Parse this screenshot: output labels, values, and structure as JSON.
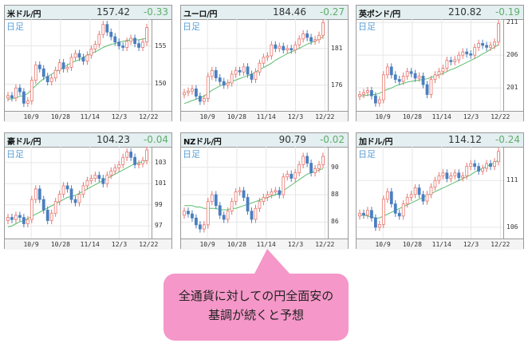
{
  "chart_data": [
    {
      "type": "candlestick",
      "title": "米ドル/円",
      "price": "157.42",
      "change": "-0.33",
      "period": "日足",
      "x_ticks": [
        "10/9",
        "10/28",
        "11/14",
        "12/3",
        "12/22"
      ],
      "y_ticks": [
        "155",
        "150"
      ],
      "ylim": [
        146.5,
        158.5
      ],
      "close_series": [
        148.5,
        148.2,
        149.5,
        149.0,
        147.5,
        147.8,
        150.5,
        152.5,
        152.0,
        151.0,
        150.3,
        150.8,
        151.8,
        152.8,
        152.0,
        152.2,
        153.5,
        154.0,
        153.5,
        153.0,
        153.8,
        154.6,
        155.2,
        156.5,
        157.8,
        156.8,
        156.2,
        155.5,
        155.0,
        154.8,
        155.6,
        156.0,
        155.3,
        154.8,
        155.5,
        157.4
      ],
      "ma_series": [
        148.0,
        148.1,
        148.2,
        148.4,
        148.5,
        148.8,
        149.3,
        149.8,
        150.3,
        150.7,
        151.0,
        151.3,
        151.6,
        151.9,
        152.2,
        152.5,
        152.8,
        153.0,
        153.2,
        153.5,
        153.8,
        154.0,
        154.2,
        154.5,
        154.8,
        155.0,
        155.2,
        155.3,
        155.5,
        155.6,
        155.7,
        155.8,
        155.8,
        155.8,
        155.9,
        156.0
      ]
    },
    {
      "type": "candlestick",
      "title": "ユーロ/円",
      "price": "184.46",
      "change": "-0.27",
      "period": "日足",
      "x_ticks": [
        "10/9",
        "10/28",
        "11/14",
        "12/3",
        "12/22"
      ],
      "y_ticks": [
        "181",
        "176"
      ],
      "ylim": [
        172.5,
        185
      ],
      "close_series": [
        175.0,
        175.2,
        175.5,
        174.5,
        173.8,
        174.2,
        177.2,
        178.0,
        177.0,
        176.5,
        176.0,
        176.3,
        177.5,
        178.0,
        177.8,
        178.5,
        177.5,
        176.8,
        177.8,
        179.0,
        179.8,
        180.0,
        181.5,
        181.0,
        181.3,
        180.8,
        181.0,
        180.8,
        181.5,
        182.3,
        183.0,
        182.5,
        182.0,
        182.2,
        182.8,
        184.5
      ],
      "ma_series": [
        173.5,
        173.7,
        173.9,
        174.1,
        174.3,
        174.5,
        174.9,
        175.3,
        175.6,
        175.9,
        176.1,
        176.3,
        176.5,
        176.7,
        176.9,
        177.1,
        177.3,
        177.5,
        177.8,
        178.1,
        178.4,
        178.7,
        179.0,
        179.4,
        179.7,
        180.0,
        180.3,
        180.5,
        180.8,
        181.0,
        181.3,
        181.6,
        181.8,
        182.0,
        182.3,
        182.6
      ]
    },
    {
      "type": "candlestick",
      "title": "英ポンド/円",
      "price": "210.82",
      "change": "-0.19",
      "period": "日足",
      "x_ticks": [
        "10/9",
        "10/28",
        "11/14",
        "12/3",
        "12/22"
      ],
      "y_ticks": [
        "211",
        "206",
        "201"
      ],
      "ylim": [
        197.5,
        211.5
      ],
      "close_series": [
        200.0,
        200.3,
        200.6,
        199.8,
        198.7,
        199.2,
        203.0,
        204.2,
        203.0,
        202.3,
        202.0,
        202.8,
        203.5,
        203.2,
        202.5,
        202.8,
        201.5,
        200.0,
        202.3,
        203.0,
        203.5,
        204.0,
        205.2,
        205.0,
        205.3,
        206.0,
        206.5,
        206.2,
        206.0,
        207.2,
        207.8,
        207.5,
        207.2,
        207.5,
        208.0,
        210.8
      ],
      "ma_series": [
        199.8,
        199.8,
        199.9,
        200.0,
        200.0,
        200.2,
        200.5,
        200.8,
        201.0,
        201.3,
        201.5,
        201.7,
        201.9,
        202.0,
        202.1,
        202.2,
        202.3,
        202.4,
        202.6,
        202.8,
        203.0,
        203.2,
        203.5,
        203.8,
        204.0,
        204.3,
        204.6,
        204.9,
        205.2,
        205.5,
        205.8,
        206.2,
        206.5,
        206.9,
        207.2,
        207.6
      ]
    },
    {
      "type": "candlestick",
      "title": "豪ドル/円",
      "price": "104.23",
      "change": "-0.04",
      "period": "日足",
      "x_ticks": [
        "10/9",
        "10/28",
        "11/14",
        "12/3",
        "12/22"
      ],
      "y_ticks": [
        "103",
        "101",
        "99",
        "97"
      ],
      "ylim": [
        95.8,
        104.5
      ],
      "close_series": [
        97.8,
        97.6,
        98.0,
        97.8,
        97.2,
        97.6,
        99.5,
        100.5,
        99.5,
        98.5,
        97.5,
        98.2,
        99.3,
        100.0,
        100.8,
        100.5,
        99.5,
        99.2,
        100.0,
        100.8,
        101.3,
        101.5,
        101.8,
        101.5,
        101.0,
        101.8,
        102.2,
        102.5,
        102.8,
        103.5,
        104.0,
        103.5,
        102.8,
        102.9,
        103.2,
        104.2
      ],
      "ma_series": [
        96.9,
        97.0,
        97.2,
        97.4,
        97.5,
        97.7,
        97.9,
        98.1,
        98.3,
        98.5,
        98.7,
        98.9,
        99.1,
        99.3,
        99.5,
        99.7,
        99.8,
        99.9,
        100.1,
        100.3,
        100.5,
        100.7,
        100.9,
        101.1,
        101.3,
        101.5,
        101.7,
        101.9,
        102.1,
        102.3,
        102.5,
        102.7,
        102.9,
        103.0,
        103.1,
        103.2
      ]
    },
    {
      "type": "candlestick",
      "title": "NZドル/円",
      "price": "90.79",
      "change": "-0.02",
      "period": "日足",
      "x_ticks": [
        "10/9",
        "10/28",
        "11/14",
        "12/3",
        "12/22"
      ],
      "y_ticks": [
        "90",
        "88",
        "86"
      ],
      "ylim": [
        84.8,
        91.5
      ],
      "close_series": [
        86.8,
        86.6,
        86.3,
        85.8,
        85.5,
        85.8,
        87.5,
        88.0,
        87.2,
        86.5,
        86.2,
        86.8,
        87.5,
        88.2,
        88.3,
        87.8,
        86.8,
        86.2,
        87.0,
        87.5,
        87.8,
        88.0,
        88.2,
        88.3,
        88.0,
        89.3,
        89.5,
        89.2,
        89.6,
        90.2,
        90.8,
        90.3,
        89.6,
        89.9,
        90.2,
        90.8
      ],
      "ma_series": [
        87.2,
        87.2,
        87.2,
        87.1,
        87.1,
        87.0,
        87.0,
        87.0,
        87.0,
        86.9,
        86.9,
        86.9,
        87.0,
        87.0,
        87.1,
        87.2,
        87.3,
        87.4,
        87.5,
        87.6,
        87.7,
        87.8,
        87.9,
        88.0,
        88.1,
        88.3,
        88.5,
        88.7,
        88.9,
        89.1,
        89.3,
        89.5,
        89.6,
        89.7,
        89.8,
        89.9
      ]
    },
    {
      "type": "candlestick",
      "title": "加ドル/円",
      "price": "114.12",
      "change": "-0.24",
      "period": "日足",
      "x_ticks": [
        "10/9",
        "10/28",
        "11/14",
        "12/3",
        "12/22"
      ],
      "y_ticks": [
        "111",
        "106"
      ],
      "ylim": [
        104.8,
        114.6
      ],
      "close_series": [
        107.5,
        107.3,
        107.8,
        107.0,
        106.0,
        106.3,
        109.0,
        109.8,
        108.5,
        107.5,
        107.2,
        108.5,
        109.2,
        109.5,
        110.2,
        109.5,
        108.8,
        109.5,
        110.3,
        111.0,
        111.5,
        111.8,
        111.2,
        111.5,
        111.8,
        111.3,
        111.5,
        112.5,
        112.8,
        112.5,
        112.0,
        112.3,
        112.8,
        112.5,
        113.0,
        114.1
      ],
      "ma_series": [
        107.3,
        107.3,
        107.2,
        107.1,
        107.0,
        107.0,
        107.2,
        107.4,
        107.6,
        107.8,
        108.0,
        108.2,
        108.4,
        108.6,
        108.8,
        109.0,
        109.2,
        109.4,
        109.6,
        109.8,
        110.0,
        110.2,
        110.4,
        110.6,
        110.8,
        111.0,
        111.2,
        111.4,
        111.6,
        111.9,
        112.1,
        112.3,
        112.5,
        112.7,
        112.9,
        113.2
      ]
    }
  ],
  "panels_meta": {
    "period_label": "日足"
  },
  "callout": {
    "line1": "全通貨に対しての円全面安の",
    "line2": "基調が続くと予想"
  },
  "colors": {
    "up": "#e8766e",
    "down": "#4a7fc0",
    "ma": "#5bbd6e",
    "change": "#5fae6a",
    "header_bg": "#e3eff0",
    "callout_bg": "#f597c8"
  }
}
